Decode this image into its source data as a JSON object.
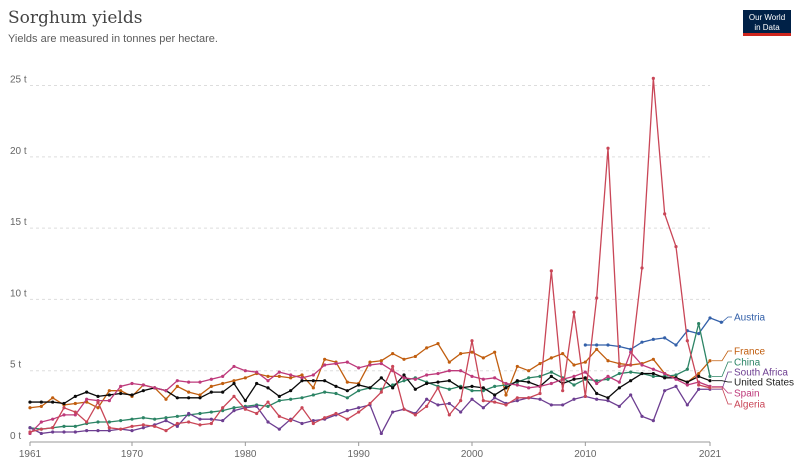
{
  "header": {
    "title": "Sorghum yields",
    "subtitle": "Yields are measured in tonnes per hectare.",
    "logo_line1": "Our World",
    "logo_line2": "in Data"
  },
  "chart_data": {
    "type": "line",
    "title": "Sorghum yields",
    "subtitle": "Yields are measured in tonnes per hectare.",
    "xlabel": "",
    "ylabel": "",
    "xlim": [
      1961,
      2021
    ],
    "ylim": [
      0,
      27
    ],
    "grid": true,
    "legend_placement": "right",
    "x_ticks": [
      1961,
      1970,
      1980,
      1990,
      2000,
      2010,
      2021
    ],
    "x_tick_labels": [
      "1961",
      "1970",
      "1980",
      "1990",
      "2000",
      "2010",
      "2021"
    ],
    "y_ticks": [
      0,
      5,
      10,
      15,
      20,
      25
    ],
    "y_tick_labels": [
      "0 t",
      "5 t",
      "10 t",
      "15 t",
      "20 t",
      "25 t"
    ],
    "years": [
      1961,
      1962,
      1963,
      1964,
      1965,
      1966,
      1967,
      1968,
      1969,
      1970,
      1971,
      1972,
      1973,
      1974,
      1975,
      1976,
      1977,
      1978,
      1979,
      1980,
      1981,
      1982,
      1983,
      1984,
      1985,
      1986,
      1987,
      1988,
      1989,
      1990,
      1991,
      1992,
      1993,
      1994,
      1995,
      1996,
      1997,
      1998,
      1999,
      2000,
      2001,
      2002,
      2003,
      2004,
      2005,
      2006,
      2007,
      2008,
      2009,
      2010,
      2011,
      2012,
      2013,
      2014,
      2015,
      2016,
      2017,
      2018,
      2019,
      2020,
      2021
    ],
    "series": [
      {
        "name": "Austria",
        "color": "#3360a9",
        "start": 2010,
        "values": [
          6.8,
          6.8,
          6.8,
          6.7,
          6.5,
          7.0,
          7.2,
          7.3,
          6.8,
          7.8,
          7.6,
          8.7,
          8.4
        ]
      },
      {
        "name": "France",
        "color": "#c15e0f",
        "start": 1961,
        "values": [
          2.4,
          2.5,
          3.1,
          2.6,
          2.7,
          2.8,
          2.4,
          3.6,
          3.6,
          3.2,
          4.0,
          3.8,
          3.0,
          3.9,
          3.5,
          3.3,
          3.9,
          4.1,
          4.3,
          4.5,
          4.8,
          4.6,
          4.6,
          4.5,
          4.7,
          3.8,
          5.8,
          5.6,
          4.2,
          4.1,
          5.6,
          5.7,
          6.2,
          5.8,
          6.0,
          6.6,
          6.9,
          5.6,
          6.2,
          6.3,
          5.9,
          6.3,
          3.3,
          5.3,
          5.0,
          5.5,
          5.9,
          6.2,
          5.4,
          5.6,
          6.5,
          5.7,
          5.5,
          5.4,
          5.5,
          5.8,
          4.8,
          4.5,
          4.2,
          4.8,
          5.7
        ]
      },
      {
        "name": "China",
        "color": "#2c8465",
        "start": 1961,
        "values": [
          1.0,
          0.9,
          1.0,
          1.1,
          1.1,
          1.3,
          1.4,
          1.4,
          1.5,
          1.6,
          1.7,
          1.6,
          1.7,
          1.8,
          1.9,
          2.0,
          2.1,
          2.2,
          2.4,
          2.5,
          2.6,
          2.5,
          2.9,
          3.0,
          3.1,
          3.3,
          3.5,
          3.4,
          3.1,
          3.6,
          3.8,
          3.7,
          4.0,
          4.3,
          4.5,
          4.2,
          3.9,
          3.7,
          3.9,
          3.6,
          3.6,
          3.9,
          4.0,
          4.2,
          4.5,
          4.6,
          4.9,
          4.5,
          4.0,
          4.4,
          4.3,
          4.4,
          4.8,
          4.9,
          4.8,
          4.6,
          4.6,
          4.7,
          5.1,
          8.3,
          4.6
        ]
      },
      {
        "name": "South Africa",
        "color": "#6d3e91",
        "start": 1961,
        "values": [
          1.0,
          0.6,
          0.7,
          0.7,
          0.7,
          0.8,
          0.8,
          0.8,
          0.9,
          0.8,
          1.0,
          1.2,
          1.5,
          1.1,
          2.0,
          1.6,
          1.6,
          1.5,
          2.2,
          2.4,
          2.5,
          1.4,
          0.9,
          1.6,
          1.3,
          1.5,
          1.6,
          1.9,
          2.2,
          2.4,
          2.6,
          0.6,
          2.1,
          2.3,
          2.0,
          3.0,
          2.6,
          2.7,
          2.1,
          3.0,
          2.4,
          3.1,
          2.7,
          2.9,
          3.1,
          3.0,
          2.6,
          2.6,
          3.0,
          3.2,
          3.0,
          2.9,
          2.5,
          3.3,
          1.8,
          1.5,
          3.6,
          3.9,
          2.6,
          3.7,
          3.7
        ]
      },
      {
        "name": "United States",
        "color": "#0a0a0a",
        "start": 1961,
        "values": [
          2.8,
          2.8,
          2.8,
          2.7,
          3.2,
          3.5,
          3.2,
          3.3,
          3.4,
          3.3,
          3.6,
          3.8,
          3.6,
          3.1,
          3.1,
          3.1,
          3.5,
          3.5,
          4.1,
          2.9,
          4.1,
          3.8,
          3.2,
          3.6,
          4.3,
          4.3,
          4.3,
          3.9,
          3.6,
          4.0,
          3.8,
          4.5,
          3.8,
          4.7,
          3.7,
          4.1,
          4.2,
          4.3,
          3.8,
          3.9,
          3.8,
          3.3,
          3.8,
          4.3,
          4.2,
          3.9,
          4.6,
          4.1,
          4.4,
          4.5,
          3.4,
          3.1,
          3.8,
          4.3,
          4.8,
          4.8,
          4.5,
          4.5,
          4.2,
          4.6,
          4.3
        ]
      },
      {
        "name": "Spain",
        "color": "#be3a7b",
        "start": 1961,
        "values": [
          0.6,
          1.4,
          1.6,
          1.9,
          1.9,
          3.0,
          2.9,
          2.9,
          3.9,
          4.1,
          4.0,
          3.8,
          3.6,
          4.3,
          4.2,
          4.2,
          4.4,
          4.6,
          5.3,
          5.0,
          4.9,
          4.3,
          4.9,
          4.7,
          4.5,
          4.7,
          5.4,
          5.5,
          5.6,
          5.2,
          5.4,
          5.5,
          5.0,
          4.5,
          4.4,
          4.7,
          4.8,
          5.0,
          5.0,
          4.6,
          4.4,
          4.5,
          4.1,
          4.0,
          3.8,
          3.9,
          4.1,
          4.4,
          4.6,
          4.9,
          4.1,
          4.6,
          4.2,
          6.3,
          5.4,
          5.1,
          4.8,
          4.4,
          4.0,
          4.2,
          3.9
        ]
      },
      {
        "name": "Algeria",
        "color": "#c94657",
        "start": 1961,
        "values": [
          0.7,
          0.9,
          1.0,
          2.4,
          2.1,
          1.4,
          2.8,
          1.0,
          0.9,
          1.1,
          1.2,
          1.1,
          0.8,
          1.3,
          1.4,
          1.2,
          1.3,
          2.4,
          3.2,
          2.3,
          2.0,
          2.8,
          1.8,
          1.5,
          2.4,
          1.3,
          1.7,
          2.0,
          1.6,
          2.1,
          2.7,
          3.5,
          5.3,
          2.3,
          1.9,
          2.5,
          3.8,
          1.9,
          2.9,
          7.1,
          2.9,
          2.8,
          2.6,
          3.1,
          3.1,
          3.4,
          12.0,
          3.6,
          9.1,
          3.2,
          10.1,
          20.6,
          5.3,
          5.4,
          12.2,
          25.5,
          16.0,
          13.7,
          7.1,
          4.0,
          3.8
        ]
      }
    ]
  }
}
